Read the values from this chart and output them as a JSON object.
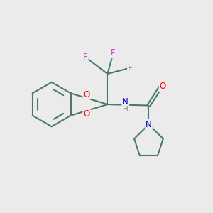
{
  "bg_color": "#ebebeb",
  "bond_color": "#4a7a6a",
  "bond_width": 1.5,
  "atom_colors": {
    "O": "#ff0000",
    "N_amide": "#0000cc",
    "N_pyrr": "#0000cc",
    "F": "#cc44cc",
    "H": "#888888"
  },
  "figsize": [
    3.0,
    3.0
  ],
  "dpi": 100
}
